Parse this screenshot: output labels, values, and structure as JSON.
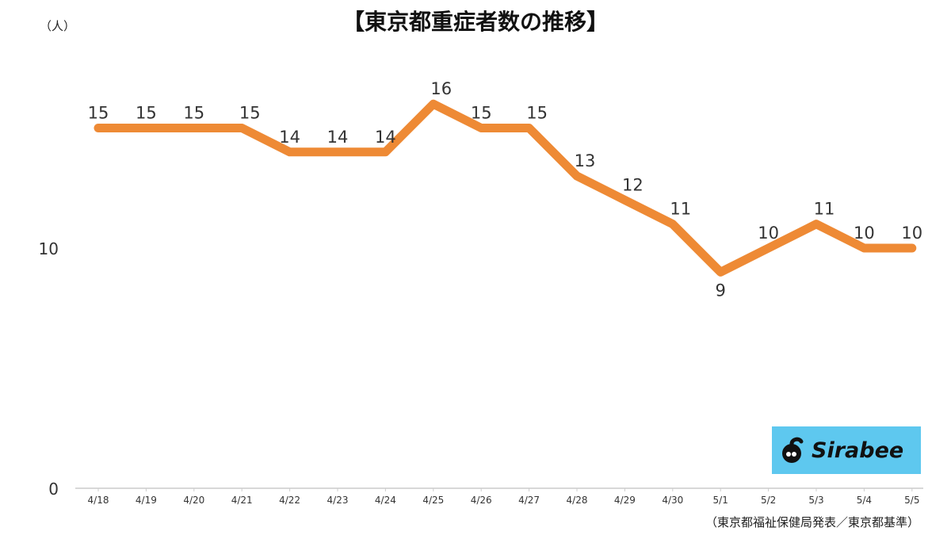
{
  "title": "【東京都重症者数の推移】",
  "unit_label": "（人）",
  "source_note": "（東京都福祉保健局発表／東京都基準）",
  "logo": {
    "text": "Sirabee",
    "background": "#5ec8ef"
  },
  "colors": {
    "line": "#ee8a35",
    "axis": "#cccccc",
    "text": "#333333"
  },
  "chart_data": {
    "type": "line",
    "title": "【東京都重症者数の推移】",
    "xlabel": "",
    "ylabel": "（人）",
    "categories": [
      "4/18",
      "4/19",
      "4/20",
      "4/21",
      "4/22",
      "4/23",
      "4/24",
      "4/25",
      "4/26",
      "4/27",
      "4/28",
      "4/29",
      "4/30",
      "5/1",
      "5/2",
      "5/3",
      "5/4",
      "5/5"
    ],
    "series": [
      {
        "values": [
          15,
          15,
          15,
          15,
          14,
          14,
          14,
          16,
          15,
          15,
          13,
          12,
          11,
          9,
          10,
          11,
          10,
          10
        ]
      }
    ],
    "yticks": [
      0,
      10
    ],
    "ylim": [
      0,
      20
    ],
    "grid": false,
    "legend": "none"
  }
}
